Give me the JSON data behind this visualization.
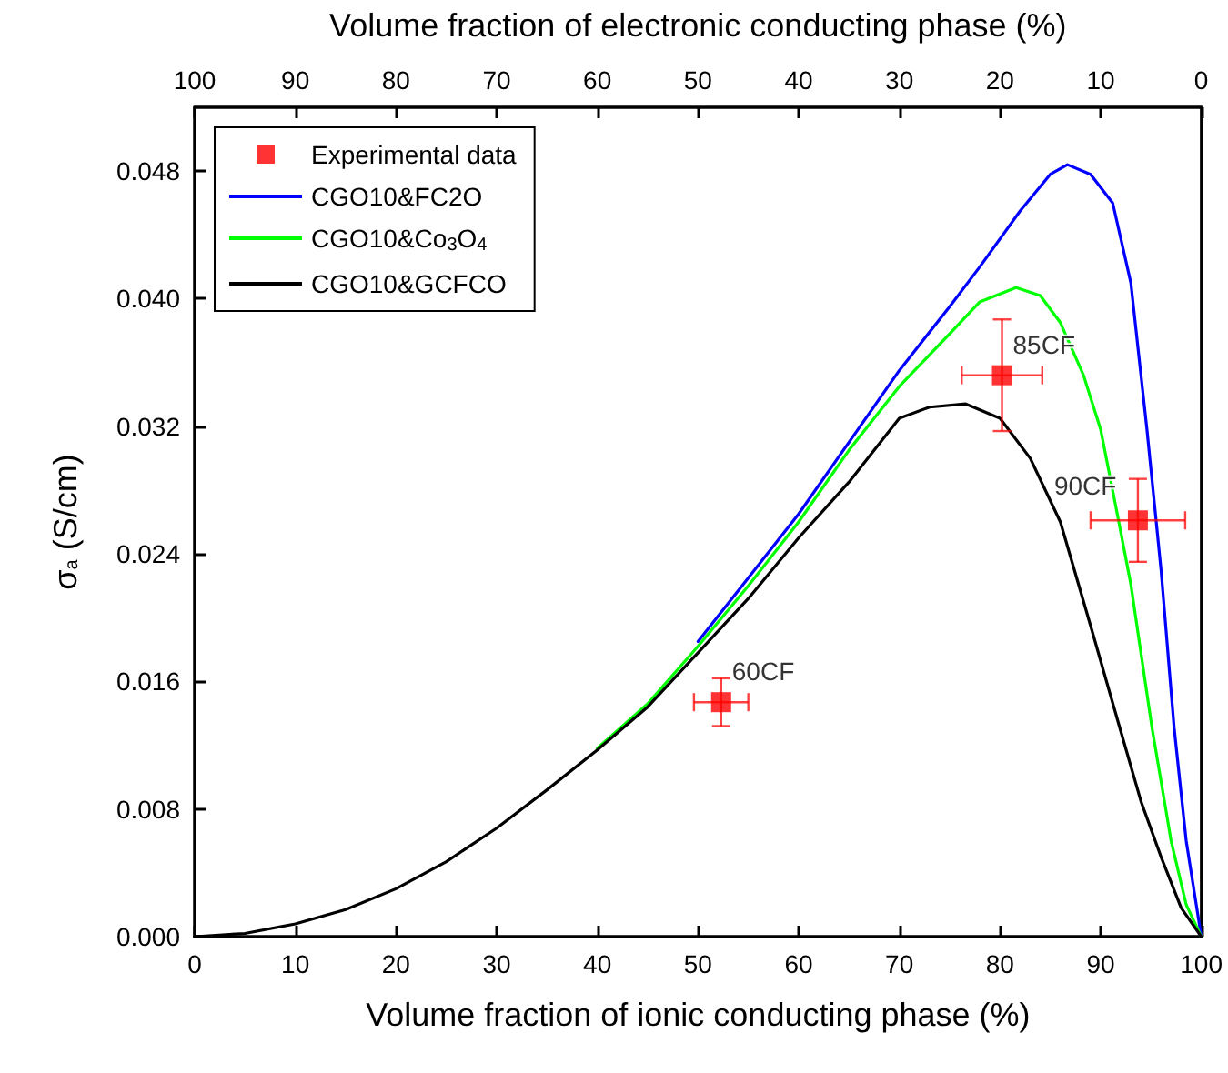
{
  "chart_data": {
    "type": "line",
    "xlabel": "Volume fraction of ionic conducting phase (%)",
    "ylabel": "σ$_{a}$ (S/cm)",
    "x2label": "Volume fraction of electronic conducting phase (%)",
    "xlim": [
      0,
      100
    ],
    "xticks": [
      0,
      10,
      20,
      30,
      40,
      50,
      60,
      70,
      80,
      90,
      100
    ],
    "x2lim": [
      100,
      0
    ],
    "x2ticks": [
      100,
      90,
      80,
      70,
      60,
      50,
      40,
      30,
      20,
      10,
      0
    ],
    "ylim": [
      0,
      0.052
    ],
    "yticks": [
      {
        "value": 0,
        "label": "0.000"
      },
      {
        "value": 0.008,
        "label": "0.008"
      },
      {
        "value": 0.016,
        "label": "0.016"
      },
      {
        "value": 0.024,
        "label": "0.024"
      },
      {
        "value": 0.032,
        "label": "0.032"
      },
      {
        "value": 0.04,
        "label": "0.040"
      },
      {
        "value": 0.048,
        "label": "0.048"
      }
    ],
    "grid": false,
    "legend": "top left",
    "series": [
      {
        "name": "Experimental data",
        "type": "scatter",
        "marker": "square",
        "color": "#ff0000",
        "x": [
          52.3,
          80.2,
          93.7
        ],
        "values": [
          0.0147,
          0.0352,
          0.0261
        ],
        "errors": [
          0.0015,
          0.0035,
          0.0026
        ],
        "xerrors": [
          2.7,
          4.0,
          4.7
        ]
      },
      {
        "name": "CGO10&FC2O",
        "marker": "none",
        "color": "#0000ff",
        "x": [
          50,
          55,
          60,
          65,
          70,
          75,
          78,
          82,
          85,
          86.7,
          89,
          91.2,
          93,
          94.6,
          96,
          97.3,
          98.5,
          100
        ],
        "values": [
          0.0185,
          0.0225,
          0.0265,
          0.031,
          0.0355,
          0.0395,
          0.042,
          0.0455,
          0.0478,
          0.0484,
          0.0478,
          0.046,
          0.041,
          0.0318,
          0.023,
          0.0131,
          0.006,
          0
        ]
      },
      {
        "name": "CGO10&Co$_{3}$O$_{4}$",
        "marker": "none",
        "color": "#00ff00",
        "x": [
          40,
          45,
          50,
          55,
          60,
          65,
          70,
          75,
          78,
          81.6,
          84,
          86,
          88.3,
          90,
          91.5,
          93,
          95.1,
          97,
          98.5,
          100
        ],
        "values": [
          0.0118,
          0.0146,
          0.0182,
          0.022,
          0.026,
          0.0305,
          0.0345,
          0.0378,
          0.0398,
          0.0407,
          0.0402,
          0.0385,
          0.0352,
          0.0318,
          0.027,
          0.0221,
          0.0131,
          0.006,
          0.002,
          0
        ]
      },
      {
        "name": "CGO10&GCFCO",
        "marker": "none",
        "color": "#000000",
        "x": [
          0,
          5,
          10,
          15,
          20,
          25,
          30,
          35,
          40,
          45,
          50,
          55,
          60,
          65,
          70,
          73,
          76.6,
          80,
          83,
          86,
          89,
          91.9,
          94,
          96,
          98,
          100
        ],
        "values": [
          0,
          0.0002,
          0.0008,
          0.0017,
          0.003,
          0.0047,
          0.0068,
          0.0092,
          0.0117,
          0.0144,
          0.0178,
          0.0212,
          0.025,
          0.0285,
          0.0325,
          0.0332,
          0.0334,
          0.0325,
          0.03,
          0.026,
          0.0195,
          0.0131,
          0.0085,
          0.005,
          0.0018,
          0
        ]
      }
    ],
    "annotations": [
      {
        "text": "60CF",
        "x": 52.3,
        "y": 0.0147
      },
      {
        "text": "85CF",
        "x": 80.2,
        "y": 0.0352
      },
      {
        "text": "90CF",
        "x": 93.7,
        "y": 0.0261
      }
    ]
  }
}
